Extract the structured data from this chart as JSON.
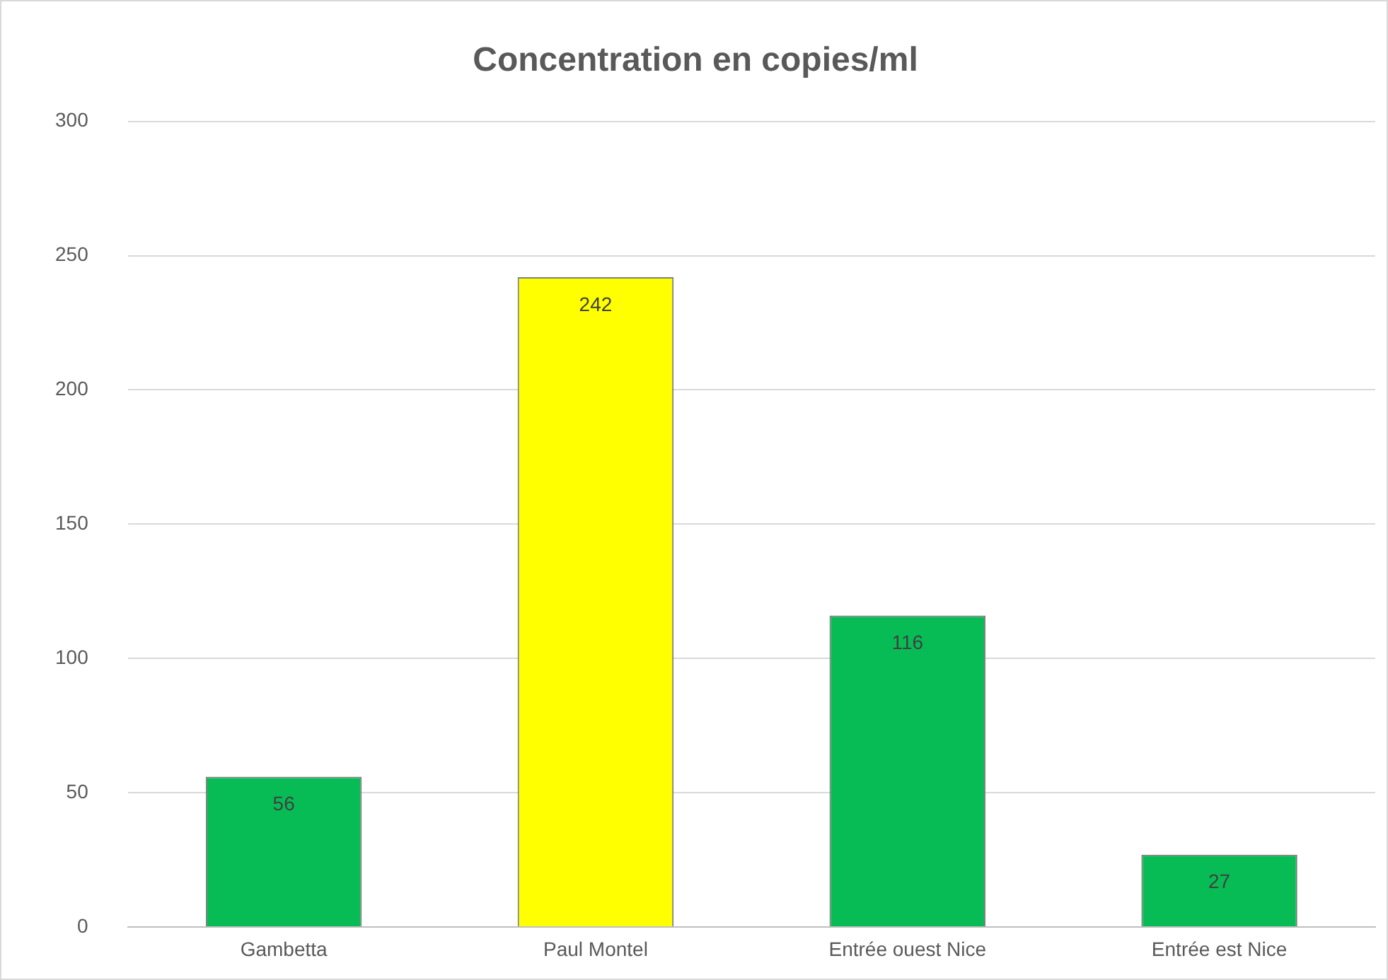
{
  "chart_data": {
    "type": "bar",
    "title": "Concentration en copies/ml",
    "categories": [
      "Gambetta",
      "Paul Montel",
      "Entrée ouest Nice",
      "Entrée est Nice"
    ],
    "values": [
      56,
      242,
      116,
      27
    ],
    "colors": [
      "#08bc55",
      "#ffff00",
      "#08bc55",
      "#08bc55"
    ],
    "ylim": [
      0,
      300
    ],
    "yticks": [
      0,
      50,
      100,
      150,
      200,
      250,
      300
    ],
    "grid": "y",
    "data_labels": true
  }
}
